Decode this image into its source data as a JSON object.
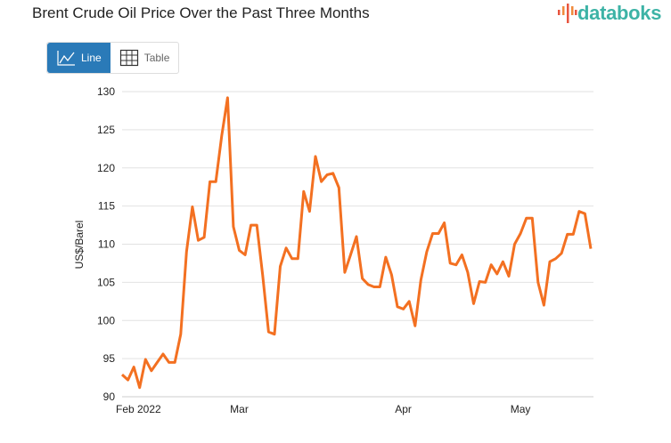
{
  "header": {
    "title": "Brent Crude Oil Price Over the Past Three Months",
    "logo_text": "databoks"
  },
  "toggle": {
    "line_label": "Line",
    "table_label": "Table",
    "active": "Line"
  },
  "colors": {
    "line": "#f37021",
    "accent": "#2a7ab8",
    "logo": "#3db3a6"
  },
  "chart_data": {
    "type": "line",
    "title": "Brent Crude Oil Price Over the Past Three Months",
    "xlabel": "",
    "ylabel": "US$/Barel",
    "ylim": [
      90,
      130
    ],
    "yticks": [
      90,
      95,
      100,
      105,
      110,
      115,
      120,
      125,
      130
    ],
    "xticks": [
      {
        "label": "Feb 2022",
        "index": 0
      },
      {
        "label": "Mar",
        "index": 20
      },
      {
        "label": "Apr",
        "index": 48
      },
      {
        "label": "May",
        "index": 68
      }
    ],
    "grid": true,
    "series": [
      {
        "values": [
          92.9,
          92.2,
          93.9,
          91.2,
          94.9,
          93.4,
          94.5,
          95.6,
          94.5,
          94.5,
          98.2,
          109.0,
          114.9,
          110.5,
          110.9,
          118.2,
          118.2,
          124.2,
          129.2,
          112.3,
          109.2,
          108.6,
          112.5,
          112.5,
          105.9,
          98.5,
          98.2,
          107.1,
          109.5,
          108.1,
          108.1,
          116.9,
          114.3,
          121.5,
          118.2,
          119.1,
          119.3,
          117.4,
          106.3,
          108.6,
          111.0,
          105.5,
          104.7,
          104.4,
          104.4,
          108.3,
          106.0,
          101.8,
          101.5,
          102.5,
          99.3,
          105.3,
          109.0,
          111.4,
          111.4,
          112.8,
          107.5,
          107.3,
          108.6,
          106.3,
          102.2,
          105.1,
          105.0,
          107.3,
          106.1,
          107.7,
          105.8,
          110.0,
          111.4,
          113.4,
          113.4,
          105.0,
          102.0,
          107.7,
          108.1,
          108.8,
          111.3,
          111.3,
          114.3,
          114.0,
          109.4
        ]
      }
    ]
  }
}
